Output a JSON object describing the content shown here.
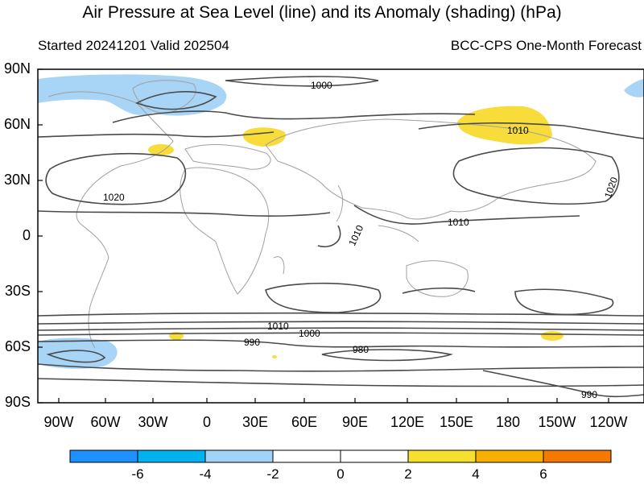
{
  "title": "Air Pressure at Sea Level (line) and its Anomaly (shading) (hPa)",
  "subtitle_left": "Started 20241201  Valid 202504",
  "subtitle_right": "BCC-CPS One-Month Forecast",
  "lat_labels": [
    "90N",
    "60N",
    "30N",
    "0",
    "30S",
    "60S",
    "90S"
  ],
  "lon_labels": [
    "90W",
    "60W",
    "30W",
    "0",
    "30E",
    "60E",
    "90E",
    "120E",
    "150E",
    "180",
    "150W",
    "120W"
  ],
  "contour_labels": [
    "1000",
    "1010",
    "1020",
    "1020",
    "1010",
    "1010",
    "1010",
    "1000",
    "990",
    "980",
    "990"
  ],
  "colorbar": {
    "labels": [
      "-6",
      "-4",
      "-2",
      "0",
      "2",
      "4",
      "6"
    ],
    "colors": [
      "#1e90ff",
      "#00b2ee",
      "#9fd3f7",
      "#ffffff",
      "#ffffff",
      "#f6df2e",
      "#f8b000",
      "#f57900"
    ]
  },
  "colors": {
    "negative_shading": "#a8d4f5",
    "positive_shading": "#f7dc3a",
    "contour": "#4a4a4a",
    "coast": "#a0a0a0"
  }
}
